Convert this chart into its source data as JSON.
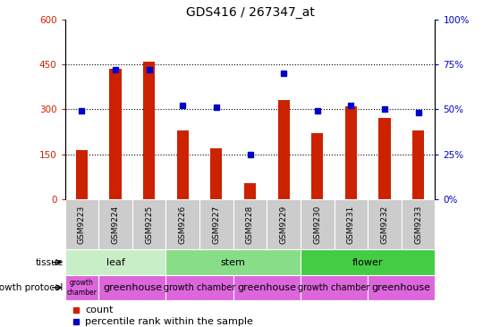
{
  "title": "GDS416 / 267347_at",
  "samples": [
    "GSM9223",
    "GSM9224",
    "GSM9225",
    "GSM9226",
    "GSM9227",
    "GSM9228",
    "GSM9229",
    "GSM9230",
    "GSM9231",
    "GSM9232",
    "GSM9233"
  ],
  "counts": [
    165,
    435,
    460,
    230,
    170,
    55,
    330,
    220,
    310,
    270,
    230
  ],
  "percentiles": [
    49,
    72,
    72,
    52,
    51,
    25,
    70,
    49,
    52,
    50,
    48
  ],
  "ylim_left": [
    0,
    600
  ],
  "ylim_right": [
    0,
    100
  ],
  "yticks_left": [
    0,
    150,
    300,
    450,
    600
  ],
  "yticks_right": [
    0,
    25,
    50,
    75,
    100
  ],
  "bar_color": "#cc2200",
  "dot_color": "#0000cc",
  "sample_box_color": "#cccccc",
  "tissue_groups": [
    {
      "label": "leaf",
      "start": 0,
      "end": 3,
      "color": "#c8eec8"
    },
    {
      "label": "stem",
      "start": 3,
      "end": 7,
      "color": "#88dd88"
    },
    {
      "label": "flower",
      "start": 7,
      "end": 11,
      "color": "#44cc44"
    }
  ],
  "growth_protocol_groups": [
    {
      "label": "growth\nchamber",
      "start": 0,
      "end": 1,
      "color": "#dd66dd",
      "fontsize": 5.5
    },
    {
      "label": "greenhouse",
      "start": 1,
      "end": 3,
      "color": "#dd66dd",
      "fontsize": 8
    },
    {
      "label": "growth chamber",
      "start": 3,
      "end": 5,
      "color": "#dd66dd",
      "fontsize": 7
    },
    {
      "label": "greenhouse",
      "start": 5,
      "end": 7,
      "color": "#dd66dd",
      "fontsize": 8
    },
    {
      "label": "growth chamber",
      "start": 7,
      "end": 9,
      "color": "#dd66dd",
      "fontsize": 7
    },
    {
      "label": "greenhouse",
      "start": 9,
      "end": 11,
      "color": "#dd66dd",
      "fontsize": 8
    }
  ],
  "legend_items": [
    {
      "color": "#cc2200",
      "label": "count"
    },
    {
      "color": "#0000cc",
      "label": "percentile rank within the sample"
    }
  ]
}
